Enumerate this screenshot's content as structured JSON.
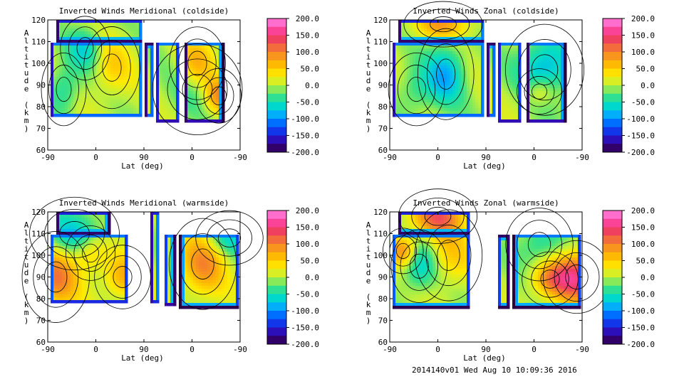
{
  "footer": "2014140v01 Wed Aug 10 10:09:36 2016",
  "chart_data": [
    {
      "type": "contour",
      "title": "Inverted Winds Meridional (coldside)",
      "xlabel": "Lat (deg)",
      "ylabel": "Altitude (km)",
      "xticks": [
        "-90",
        "0",
        "90",
        "0",
        "-90"
      ],
      "yticks": [
        "60",
        "70",
        "80",
        "90",
        "100",
        "110",
        "120"
      ],
      "ylim": [
        60,
        120
      ],
      "colorbar_ticks": [
        "200.0",
        "150.0",
        "100.0",
        "50.0",
        "0.0",
        "-50.0",
        "-100.0",
        "-150.0",
        "-200.0"
      ],
      "colorbar_range": [
        -200,
        200
      ]
    },
    {
      "type": "contour",
      "title": "Inverted Winds Zonal (coldside)",
      "xlabel": "Lat (deg)",
      "ylabel": "Altitude (km)",
      "xticks": [
        "-90",
        "0",
        "90",
        "0",
        "-90"
      ],
      "yticks": [
        "60",
        "70",
        "80",
        "90",
        "100",
        "110",
        "120"
      ],
      "ylim": [
        60,
        120
      ],
      "colorbar_ticks": [
        "200.0",
        "150.0",
        "100.0",
        "50.0",
        "0.0",
        "-50.0",
        "-100.0",
        "-150.0",
        "-200.0"
      ],
      "colorbar_range": [
        -200,
        200
      ]
    },
    {
      "type": "contour",
      "title": "Inverted Winds Meridional (warmside)",
      "xlabel": "Lat (deg)",
      "ylabel": "Altitude (km)",
      "xticks": [
        "-90",
        "0",
        "90",
        "0",
        "-90"
      ],
      "yticks": [
        "60",
        "70",
        "80",
        "90",
        "100",
        "110",
        "120"
      ],
      "ylim": [
        60,
        120
      ],
      "colorbar_ticks": [
        "200.0",
        "150.0",
        "100.0",
        "50.0",
        "0.0",
        "-50.0",
        "-100.0",
        "-150.0",
        "-200.0"
      ],
      "colorbar_range": [
        -200,
        200
      ]
    },
    {
      "type": "contour",
      "title": "Inverted Winds Zonal (warmside)",
      "xlabel": "Lat (deg)",
      "ylabel": "Altitude (km)",
      "xticks": [
        "-90",
        "0",
        "90",
        "0",
        "-90"
      ],
      "yticks": [
        "60",
        "70",
        "80",
        "90",
        "100",
        "110",
        "120"
      ],
      "ylim": [
        60,
        120
      ],
      "colorbar_ticks": [
        "200.0",
        "150.0",
        "100.0",
        "50.0",
        "0.0",
        "-50.0",
        "-100.0",
        "-150.0",
        "-200.0"
      ],
      "colorbar_range": [
        -200,
        200
      ]
    }
  ]
}
